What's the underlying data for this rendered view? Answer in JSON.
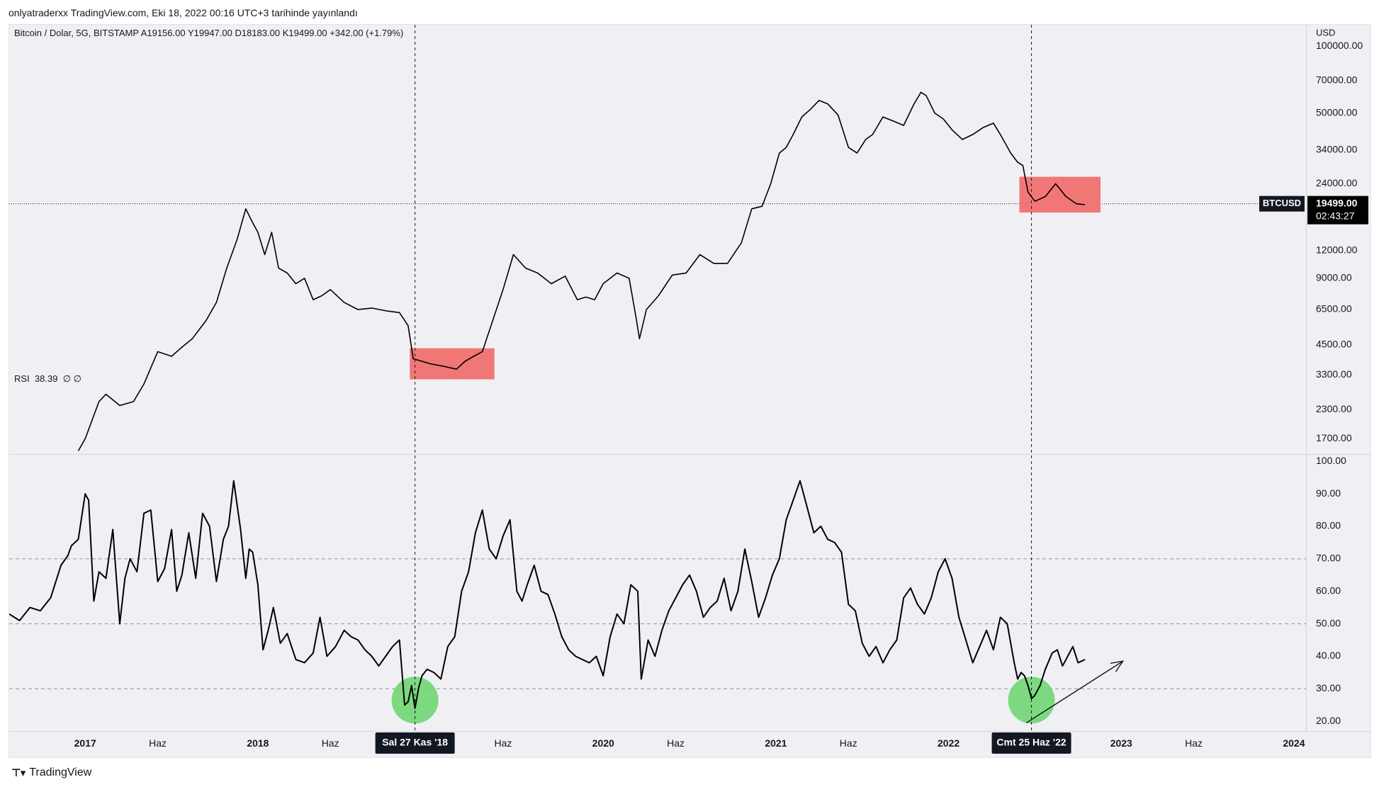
{
  "header": {
    "publish_line": "onlyatraderxx TradingView.com, Eki 18, 2022 00:16 UTC+3 tarihinde yayınlandı"
  },
  "footer": {
    "brand": "TradingView"
  },
  "price_pane": {
    "legend": "Bitcoin / Dolar, 5G, BITSTAMP  A19156.00  Y19947.00  D18183.00  K19499.00  +342.00 (+1.79%)",
    "currency": "USD",
    "symbol_tag": "BTCUSD",
    "last_price_label": "19499.00",
    "countdown_label": "02:43:27",
    "box_color": "#f07070",
    "price_color": "#000000"
  },
  "rsi_pane": {
    "legend_name": "RSI",
    "legend_value": "38.39",
    "legend_extra": "∅  ∅",
    "circle_color": "#6fd672"
  },
  "crosshair_labels": [
    "Sal 27 Kas '18",
    "Cmt 25 Haz '22"
  ],
  "chart_data": [
    {
      "type": "line",
      "yscale": "log",
      "x_unit": "year",
      "x_ticks": [
        {
          "x": 2017.0,
          "label": "2017"
        },
        {
          "x": 2017.42,
          "label": "Haz"
        },
        {
          "x": 2018.0,
          "label": "2018"
        },
        {
          "x": 2018.42,
          "label": "Haz"
        },
        {
          "x": 2019.42,
          "label": "Haz"
        },
        {
          "x": 2020.0,
          "label": "2020"
        },
        {
          "x": 2020.42,
          "label": "Haz"
        },
        {
          "x": 2021.0,
          "label": "2021"
        },
        {
          "x": 2021.42,
          "label": "Haz"
        },
        {
          "x": 2022.0,
          "label": "2022"
        },
        {
          "x": 2023.0,
          "label": "2023"
        },
        {
          "x": 2023.42,
          "label": "Haz"
        },
        {
          "x": 2024.0,
          "label": "2024"
        }
      ],
      "xlim": [
        2016.56,
        2024.07
      ],
      "ylim": [
        1450,
        125000
      ],
      "y_ticks": [
        1700,
        2300,
        3300,
        4500,
        6500,
        9000,
        12000,
        24000,
        34000,
        50000,
        70000,
        100000
      ],
      "y_tick_labels": [
        "1700.00",
        "2300.00",
        "3300.00",
        "4500.00",
        "6500.00",
        "9000.00",
        "12000.00",
        "24000.00",
        "34000.00",
        "50000.00",
        "70000.00",
        "100000.00"
      ],
      "last_price": 19499,
      "series": [
        {
          "x": [
            2016.96,
            2017.0,
            2017.08,
            2017.12,
            2017.2,
            2017.28,
            2017.34,
            2017.42,
            2017.5,
            2017.56,
            2017.62,
            2017.7,
            2017.76,
            2017.82,
            2017.88,
            2017.93,
            2017.97,
            2018.0,
            2018.04,
            2018.08,
            2018.12,
            2018.17,
            2018.22,
            2018.27,
            2018.32,
            2018.37,
            2018.42,
            2018.5,
            2018.58,
            2018.66,
            2018.75,
            2018.82,
            2018.87,
            2018.9,
            2018.95,
            2019.0,
            2019.08,
            2019.15,
            2019.2,
            2019.25,
            2019.3,
            2019.35,
            2019.42,
            2019.48,
            2019.55,
            2019.62,
            2019.7,
            2019.78,
            2019.85,
            2019.9,
            2019.95,
            2020.0,
            2020.08,
            2020.15,
            2020.19,
            2020.21,
            2020.25,
            2020.32,
            2020.4,
            2020.48,
            2020.56,
            2020.64,
            2020.72,
            2020.8,
            2020.86,
            2020.92,
            2020.97,
            2021.02,
            2021.06,
            2021.1,
            2021.15,
            2021.2,
            2021.25,
            2021.3,
            2021.36,
            2021.42,
            2021.47,
            2021.52,
            2021.56,
            2021.62,
            2021.68,
            2021.74,
            2021.8,
            2021.84,
            2021.87,
            2021.92,
            2021.97,
            2022.02,
            2022.08,
            2022.14,
            2022.2,
            2022.26,
            2022.3,
            2022.36,
            2022.4,
            2022.43,
            2022.46,
            2022.5,
            2022.56,
            2022.62,
            2022.68,
            2022.74,
            2022.79
          ],
          "y": [
            1500,
            1700,
            2500,
            2700,
            2400,
            2500,
            3000,
            4200,
            4000,
            4400,
            4800,
            5800,
            7000,
            10000,
            13500,
            18500,
            16000,
            14500,
            11500,
            14500,
            10000,
            9500,
            8500,
            9000,
            7200,
            7500,
            8000,
            7000,
            6500,
            6600,
            6400,
            6300,
            5500,
            3900,
            3800,
            3700,
            3600,
            3500,
            3800,
            4000,
            4200,
            5500,
            8000,
            11500,
            10000,
            9500,
            8500,
            9200,
            7200,
            7400,
            7200,
            8500,
            9500,
            9000,
            6000,
            4800,
            6500,
            7500,
            9300,
            9500,
            11500,
            10500,
            10500,
            13000,
            18500,
            19000,
            24000,
            33000,
            35000,
            40000,
            48000,
            52000,
            57000,
            55000,
            49000,
            35000,
            33000,
            38000,
            40000,
            48000,
            46000,
            44000,
            55000,
            62000,
            60000,
            50000,
            47000,
            42000,
            38000,
            40000,
            43000,
            45000,
            40000,
            33000,
            30000,
            29000,
            22000,
            20000,
            21000,
            24000,
            21000,
            19500,
            19300
          ]
        }
      ],
      "annotations": [
        {
          "type": "box",
          "x0": 2018.88,
          "x1": 2019.37,
          "y0": 3150,
          "y1": 4350
        },
        {
          "type": "box",
          "x0": 2022.41,
          "x1": 2022.88,
          "y0": 17800,
          "y1": 25800
        }
      ]
    },
    {
      "type": "line",
      "title": "RSI",
      "xlim": [
        2016.56,
        2024.07
      ],
      "ylim": [
        17,
        102
      ],
      "y_ticks": [
        20,
        30,
        40,
        50,
        60,
        70,
        80,
        90,
        100
      ],
      "y_tick_labels": [
        "20.00",
        "30.00",
        "40.00",
        "50.00",
        "60.00",
        "70.00",
        "80.00",
        "90.00",
        "100.00"
      ],
      "reference_lines": [
        70,
        50,
        30
      ],
      "series": [
        {
          "x": [
            2016.56,
            2016.62,
            2016.68,
            2016.74,
            2016.8,
            2016.86,
            2016.9,
            2016.92,
            2016.96,
            2017.0,
            2017.02,
            2017.05,
            2017.08,
            2017.12,
            2017.16,
            2017.2,
            2017.23,
            2017.26,
            2017.3,
            2017.34,
            2017.38,
            2017.42,
            2017.46,
            2017.5,
            2017.53,
            2017.56,
            2017.6,
            2017.64,
            2017.68,
            2017.72,
            2017.76,
            2017.8,
            2017.83,
            2017.86,
            2017.9,
            2017.93,
            2017.95,
            2017.97,
            2018.0,
            2018.03,
            2018.06,
            2018.09,
            2018.13,
            2018.17,
            2018.22,
            2018.27,
            2018.32,
            2018.36,
            2018.4,
            2018.45,
            2018.5,
            2018.54,
            2018.58,
            2018.62,
            2018.66,
            2018.7,
            2018.74,
            2018.78,
            2018.82,
            2018.85,
            2018.87,
            2018.89,
            2018.91,
            2018.93,
            2018.95,
            2018.98,
            2019.02,
            2019.06,
            2019.1,
            2019.14,
            2019.18,
            2019.22,
            2019.26,
            2019.3,
            2019.34,
            2019.38,
            2019.42,
            2019.46,
            2019.5,
            2019.53,
            2019.56,
            2019.6,
            2019.64,
            2019.68,
            2019.72,
            2019.76,
            2019.8,
            2019.84,
            2019.88,
            2019.92,
            2019.96,
            2020.0,
            2020.04,
            2020.08,
            2020.12,
            2020.16,
            2020.2,
            2020.22,
            2020.26,
            2020.3,
            2020.34,
            2020.38,
            2020.42,
            2020.46,
            2020.5,
            2020.54,
            2020.58,
            2020.62,
            2020.66,
            2020.7,
            2020.74,
            2020.78,
            2020.82,
            2020.86,
            2020.9,
            2020.94,
            2020.98,
            2021.02,
            2021.06,
            2021.1,
            2021.14,
            2021.18,
            2021.22,
            2021.26,
            2021.3,
            2021.34,
            2021.38,
            2021.42,
            2021.46,
            2021.5,
            2021.54,
            2021.58,
            2021.62,
            2021.66,
            2021.7,
            2021.74,
            2021.78,
            2021.82,
            2021.86,
            2021.9,
            2021.94,
            2021.98,
            2022.02,
            2022.06,
            2022.1,
            2022.14,
            2022.18,
            2022.22,
            2022.26,
            2022.3,
            2022.34,
            2022.38,
            2022.4,
            2022.42,
            2022.44,
            2022.46,
            2022.48,
            2022.5,
            2022.53,
            2022.56,
            2022.6,
            2022.63,
            2022.66,
            2022.69,
            2022.72,
            2022.75,
            2022.79
          ],
          "y": [
            53,
            51,
            55,
            54,
            58,
            68,
            71,
            74,
            76,
            90,
            88,
            57,
            66,
            64,
            79,
            50,
            64,
            70,
            66,
            84,
            85,
            63,
            67,
            79,
            60,
            65,
            78,
            64,
            84,
            80,
            63,
            76,
            80,
            94,
            79,
            64,
            73,
            72,
            62,
            42,
            48,
            55,
            44,
            47,
            39,
            38,
            41,
            52,
            40,
            43,
            48,
            46,
            45,
            42,
            40,
            37,
            40,
            43,
            45,
            25,
            26,
            31,
            24,
            30,
            34,
            36,
            35,
            33,
            43,
            46,
            60,
            66,
            78,
            85,
            73,
            70,
            77,
            82,
            60,
            57,
            62,
            68,
            60,
            59,
            53,
            46,
            42,
            40,
            39,
            38,
            40,
            34,
            46,
            53,
            50,
            62,
            60,
            33,
            45,
            40,
            48,
            54,
            58,
            62,
            65,
            60,
            52,
            55,
            57,
            64,
            54,
            60,
            73,
            63,
            52,
            58,
            65,
            70,
            82,
            88,
            94,
            86,
            78,
            80,
            76,
            75,
            72,
            56,
            54,
            44,
            40,
            43,
            38,
            42,
            45,
            58,
            61,
            56,
            53,
            58,
            66,
            70,
            64,
            52,
            45,
            38,
            43,
            48,
            42,
            52,
            50,
            38,
            33,
            35,
            34,
            31,
            27,
            28,
            31,
            36,
            41,
            42,
            37,
            40,
            43,
            38,
            39
          ]
        }
      ],
      "annotations": [
        {
          "type": "circle",
          "x": 2018.91,
          "y": 26.5
        },
        {
          "type": "circle",
          "x": 2022.48,
          "y": 26.5
        },
        {
          "type": "arrow",
          "x0": 2022.45,
          "y0": 19.5,
          "x1": 2023.01,
          "y1": 38.5
        }
      ]
    }
  ]
}
